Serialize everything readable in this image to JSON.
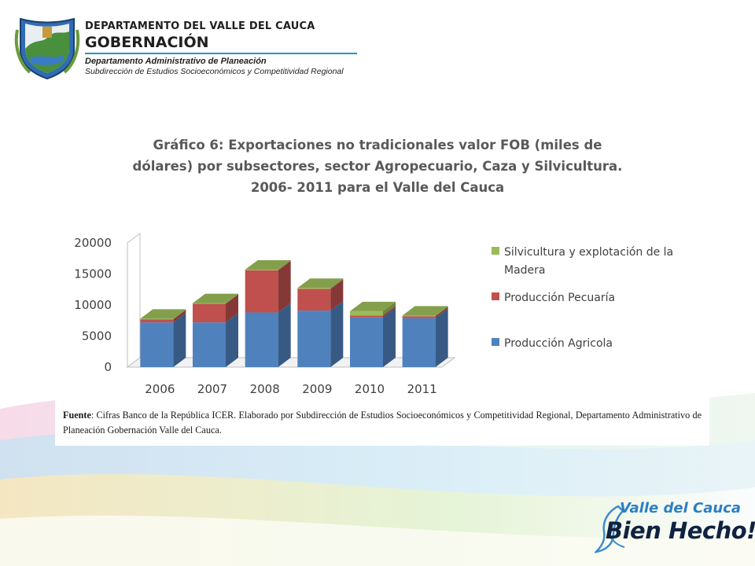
{
  "header": {
    "line1": "DEPARTAMENTO DEL VALLE DEL CAUCA",
    "line2": "GOBERNACIÓN",
    "line3": "Departamento  Administrativo de Planeación",
    "line4": "Subdirección de Estudios Socioeconómicos y Competitividad Regional",
    "crest_icon": "coat-of-arms-icon"
  },
  "chart_data": {
    "type": "bar",
    "stacked": true,
    "three_d": true,
    "title": [
      "Gráfico 6: Exportaciones no tradicionales valor FOB (miles de",
      "dólares) por subsectores, sector Agropecuario, Caza y Silvicultura.",
      "2006- 2011 para el Valle del Cauca"
    ],
    "categories": [
      "2006",
      "2007",
      "2008",
      "2009",
      "2010",
      "2011"
    ],
    "y_ticks": [
      "0",
      "5000",
      "10000",
      "15000",
      "20000"
    ],
    "ylim": [
      0,
      20000
    ],
    "legend_position": "right",
    "series": [
      {
        "name": "Producción Agricola",
        "values": [
          7200,
          7200,
          8800,
          9100,
          8000,
          7900
        ],
        "color": "#4f81bd",
        "legend_label": [
          "Producción Agricola"
        ]
      },
      {
        "name": "Producción Pecuaría",
        "values": [
          500,
          3000,
          6800,
          3500,
          300,
          300
        ],
        "color": "#c0504d",
        "legend_label": [
          "Producción Pecuaría"
        ]
      },
      {
        "name": "Silvicultura y explotación de la Madera",
        "values": [
          100,
          100,
          100,
          150,
          700,
          100
        ],
        "color": "#9bbb59",
        "legend_label": [
          "Silvicultura y explotación de la",
          "Madera"
        ]
      }
    ]
  },
  "source": {
    "label": "Fuente",
    "text": ": Cifras Banco de la República ICER. Elaborado por Subdirección de Estudios Socioeconómicos y Competitividad Regional, Departamento Administrativo de Planeación Gobernación Valle del Cauca."
  },
  "brand": {
    "top": "Valle del Cauca",
    "bottom": "Bien Hecho!",
    "icon": "dove-icon"
  }
}
